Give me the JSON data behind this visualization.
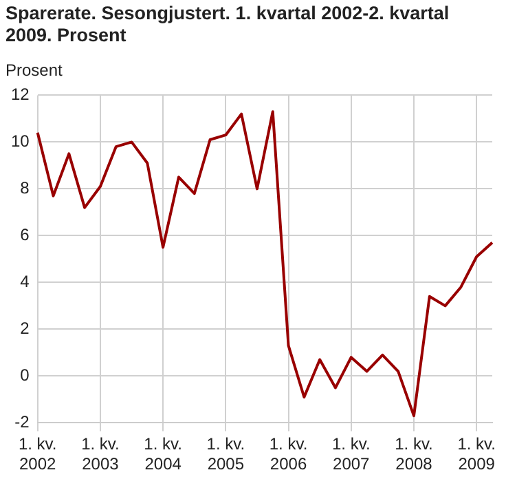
{
  "chart_data": {
    "type": "line",
    "title": "Sparerate. Sesongjustert. 1. kvartal 2002-2. kvartal 2009. Prosent",
    "ylabel": "Prosent",
    "categories": [
      "1. kv. 2002",
      null,
      null,
      null,
      "1. kv. 2003",
      null,
      null,
      null,
      "1. kv. 2004",
      null,
      null,
      null,
      "1. kv. 2005",
      null,
      null,
      null,
      "1. kv. 2006",
      null,
      null,
      null,
      "1. kv. 2007",
      null,
      null,
      null,
      "1. kv. 2008",
      null,
      null,
      null,
      "1. kv. 2009",
      null
    ],
    "series": [
      {
        "color": "#990000",
        "values": [
          10.4,
          7.7,
          9.5,
          7.2,
          8.1,
          9.8,
          10.0,
          9.1,
          5.5,
          8.5,
          7.8,
          10.1,
          10.3,
          11.2,
          8.0,
          11.3,
          1.3,
          -0.9,
          0.7,
          -0.5,
          0.8,
          0.2,
          0.9,
          0.2,
          -1.7,
          3.4,
          3.0,
          3.8,
          5.1,
          5.7
        ]
      }
    ],
    "ylim": [
      -2,
      12
    ],
    "yticks": [
      -2,
      0,
      2,
      4,
      6,
      8,
      10,
      12
    ],
    "grid": true,
    "legend": false,
    "marker": "none",
    "line_style": "solid"
  }
}
